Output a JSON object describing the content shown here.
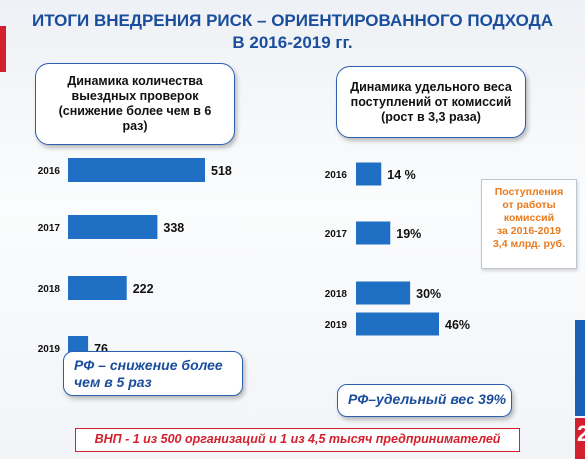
{
  "title": {
    "line1": "ИТОГИ ВНЕДРЕНИЯ РИСК – ОРИЕНТИРОВАННОГО ПОДХОДА",
    "line2": "В 2016-2019  гг."
  },
  "left_callout": "Динамика количества выездных проверок (снижение более чем в 6 раз)",
  "right_callout": "Динамика удельного веса поступлений от комиссий (рост в 3,3 раза)",
  "rf_left": "РФ – снижение более чем в 5 раз",
  "rf_right": "РФ–удельный вес 39%",
  "orange_note": {
    "lines": [
      "Поступления",
      "от работы",
      "комиссий",
      "за 2016-2019",
      "3,4 млрд. руб."
    ]
  },
  "vnp_note": "ВНП - 1 из 500 организаций и 1 из 4,5 тысяч предпринимателей",
  "corner_number": "2",
  "colors": {
    "bar": "#1f6fc5",
    "title": "#1a4e9c",
    "accent_red": "#d2202e",
    "accent_orange": "#e87a1e"
  },
  "chart_data": [
    {
      "type": "bar",
      "orientation": "horizontal",
      "categories": [
        "2016",
        "2017",
        "2018",
        "2019"
      ],
      "values": [
        518,
        338,
        222,
        76
      ],
      "value_labels": [
        "518",
        "338",
        "222",
        "76"
      ],
      "xlim": [
        0,
        518
      ]
    },
    {
      "type": "bar",
      "orientation": "horizontal",
      "categories": [
        "2016",
        "2017",
        "2018",
        "2019"
      ],
      "values": [
        14,
        19,
        30,
        46
      ],
      "value_labels": [
        "14 %",
        "19%",
        "30%",
        "46%"
      ],
      "xlim": [
        0,
        46
      ]
    }
  ]
}
